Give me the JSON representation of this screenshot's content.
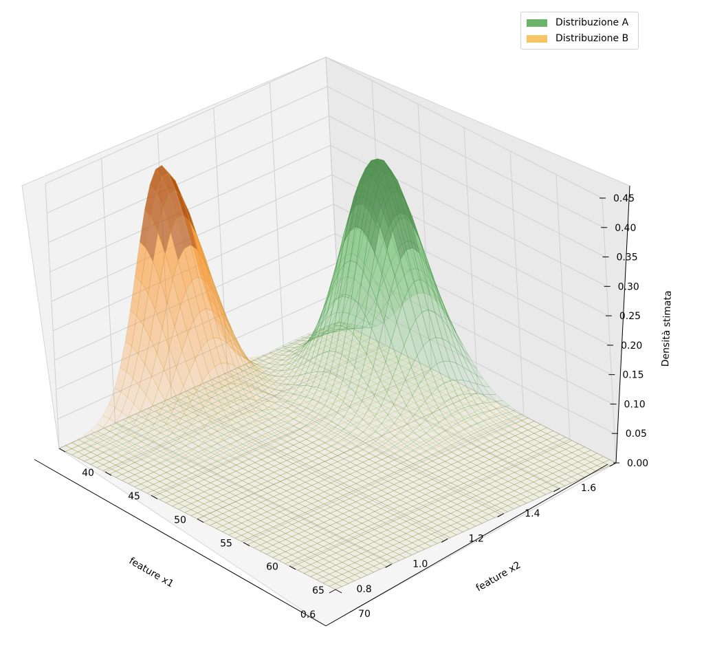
{
  "chart_data": {
    "type": "surface3d",
    "title": "",
    "xlabel": "feature x1",
    "ylabel": "feature x2",
    "zlabel": "Densità stimata",
    "xlim": [
      0.6,
      1.6
    ],
    "ylim": [
      40,
      70
    ],
    "zlim": [
      0,
      0.45
    ],
    "x_ticks": [
      "1.6",
      "1.4",
      "1.2",
      "1.0",
      "0.8",
      "0.6"
    ],
    "y_ticks": [
      "40",
      "45",
      "50",
      "55",
      "60",
      "65",
      "70"
    ],
    "z_ticks": [
      "0.00",
      "0.05",
      "0.10",
      "0.15",
      "0.20",
      "0.25",
      "0.30",
      "0.35",
      "0.40",
      "0.45"
    ],
    "grid": true,
    "legend_position": "top-right",
    "series": [
      {
        "name": "Distribuzione A",
        "color": "#6ab46a",
        "peak": {
          "x1": 1.45,
          "x2": 50,
          "density": 0.39
        }
      },
      {
        "name": "Distribuzione B",
        "color": "#f7c566",
        "peak": {
          "x1": 1.0,
          "x2": 40,
          "density": 0.395
        }
      }
    ]
  }
}
